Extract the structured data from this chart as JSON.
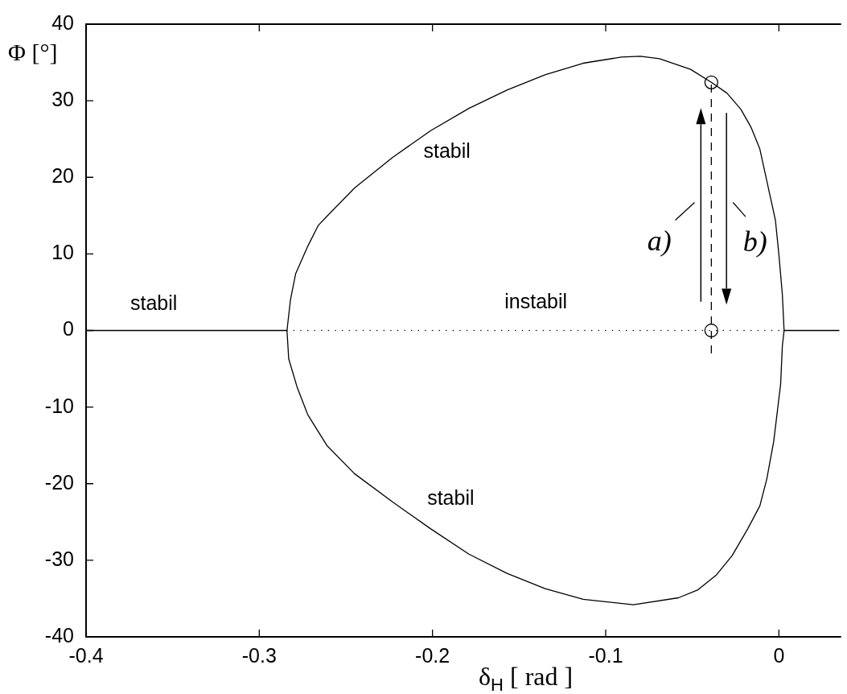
{
  "chart_data": {
    "type": "line",
    "xlabel": "δ$_{H}$ [ rad ]",
    "ylabel": "Φ [°]",
    "xlim": [
      -0.4,
      0.035
    ],
    "ylim": [
      -40,
      40
    ],
    "xticks": [
      -0.4,
      -0.3,
      -0.2,
      -0.1,
      0
    ],
    "yticks": [
      -40,
      -30,
      -20,
      -10,
      0,
      10,
      20,
      30,
      40
    ],
    "grid": false,
    "marker": "none",
    "series": [
      {
        "type": "line",
        "color": "#000000",
        "line_style": "solid",
        "x": [
          -0.4,
          -0.284,
          -0.282,
          -0.279,
          -0.272,
          -0.266,
          -0.261,
          -0.245,
          -0.223,
          -0.201,
          -0.179,
          -0.157,
          -0.135,
          -0.113,
          -0.091,
          -0.08,
          -0.069,
          -0.051,
          -0.039,
          -0.03,
          -0.022,
          -0.016,
          -0.011,
          -0.008,
          -0.005,
          -0.002,
          0.0,
          0.002,
          0.003,
          0.035
        ],
        "values": [
          0,
          0,
          4.0,
          7.4,
          11.0,
          13.7,
          14.9,
          18.6,
          22.6,
          26.1,
          29.0,
          31.4,
          33.4,
          34.9,
          35.7,
          35.8,
          35.5,
          34.1,
          32.4,
          31.0,
          28.9,
          26.5,
          23.7,
          20.6,
          17.5,
          14.4,
          9.9,
          4.7,
          0,
          0
        ]
      },
      {
        "type": "line",
        "color": "#000000",
        "line_style": "solid",
        "x": [
          -0.284,
          -0.283,
          -0.278,
          -0.272,
          -0.261,
          -0.245,
          -0.223,
          -0.201,
          -0.179,
          -0.157,
          -0.135,
          -0.113,
          -0.084,
          -0.058,
          -0.047,
          -0.036,
          -0.027,
          -0.018,
          -0.011,
          -0.007,
          -0.003,
          0.001,
          0.002,
          0.003
        ],
        "values": [
          0,
          -3.7,
          -7.5,
          -11.0,
          -15.0,
          -18.7,
          -22.4,
          -25.9,
          -29.2,
          -31.7,
          -33.7,
          -35.1,
          -35.8,
          -34.9,
          -33.9,
          -31.9,
          -29.4,
          -25.9,
          -22.9,
          -19.4,
          -14.5,
          -7.0,
          -2.0,
          0
        ]
      },
      {
        "type": "line",
        "color": "#000000",
        "line_style": "dotted",
        "x": [
          -0.284,
          0.003
        ],
        "values": [
          0,
          0
        ]
      },
      {
        "type": "line",
        "color": "#000000",
        "line_style": "dashed",
        "x": [
          -0.039,
          -0.039
        ],
        "values": [
          -3.0,
          32.4
        ]
      },
      {
        "type": "scatter",
        "color": "#000000",
        "marker": "circle",
        "x": [
          -0.039,
          -0.039
        ],
        "values": [
          32.4,
          0
        ]
      }
    ],
    "annotations": [
      "stabil",
      "stabil",
      "instabil",
      "stabil",
      "a)",
      "b)"
    ]
  }
}
